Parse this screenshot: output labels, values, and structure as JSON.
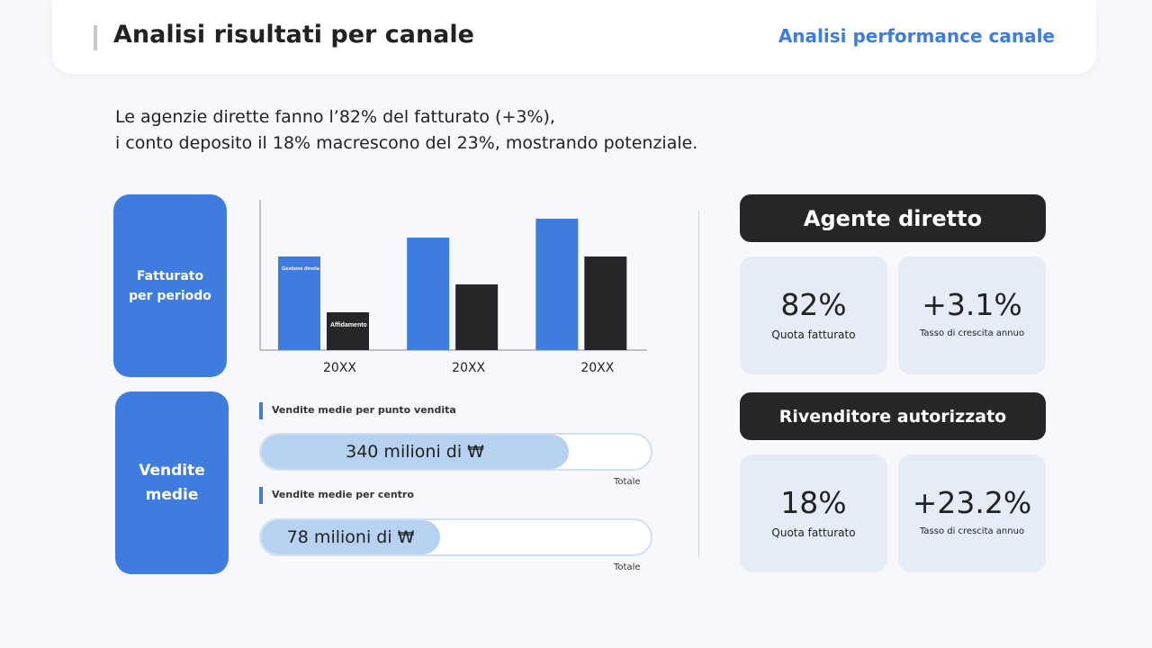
{
  "header": {
    "title": "Analisi risultati per canale",
    "link": "Analisi performance canale"
  },
  "headline": {
    "line1": "Le agenzie dirette fanno l’82% del fatturato (+3%),",
    "line2": "i conto deposito il 18% macrescono del 23%, mostrando potenziale."
  },
  "labels": {
    "revenue": "Fatturato per periodo",
    "average_sales": "Vendite medie"
  },
  "chart_data": {
    "type": "bar",
    "categories": [
      "20XX",
      "20XX",
      "20XX"
    ],
    "series": [
      {
        "name": "Gestione diretta",
        "values": [
          104,
          125,
          146
        ],
        "color": "#3e7ce0"
      },
      {
        "name": "Affidamento",
        "values": [
          42,
          73,
          104
        ],
        "color": "#262629"
      }
    ],
    "ylim": [
      0,
      170
    ],
    "axis_color": "#888888"
  },
  "avg_sales": [
    {
      "title": "Vendite medie per punto vendita",
      "value": "340 milioni di ₩",
      "fill_fraction": 0.79,
      "total_label": "Totale"
    },
    {
      "title": "Vendite medie per centro",
      "value": "78 milioni di ₩",
      "fill_fraction": 0.46,
      "total_label": "Totale"
    }
  ],
  "channels": [
    {
      "name": "Agente diretto",
      "share": "82%",
      "share_label": "Quota fatturato",
      "growth": "+3.1%",
      "growth_label": "Tasso di crescita annuo"
    },
    {
      "name": "Rivenditore autorizzato",
      "share": "18%",
      "share_label": "Quota fatturato",
      "growth": "+23.2%",
      "growth_label": "Tasso di crescita annuo"
    }
  ],
  "colors": {
    "accent": "#3e7ce0",
    "dark": "#262629",
    "card": "#e6ecf7",
    "bar_fill": "#b7d2f1"
  }
}
